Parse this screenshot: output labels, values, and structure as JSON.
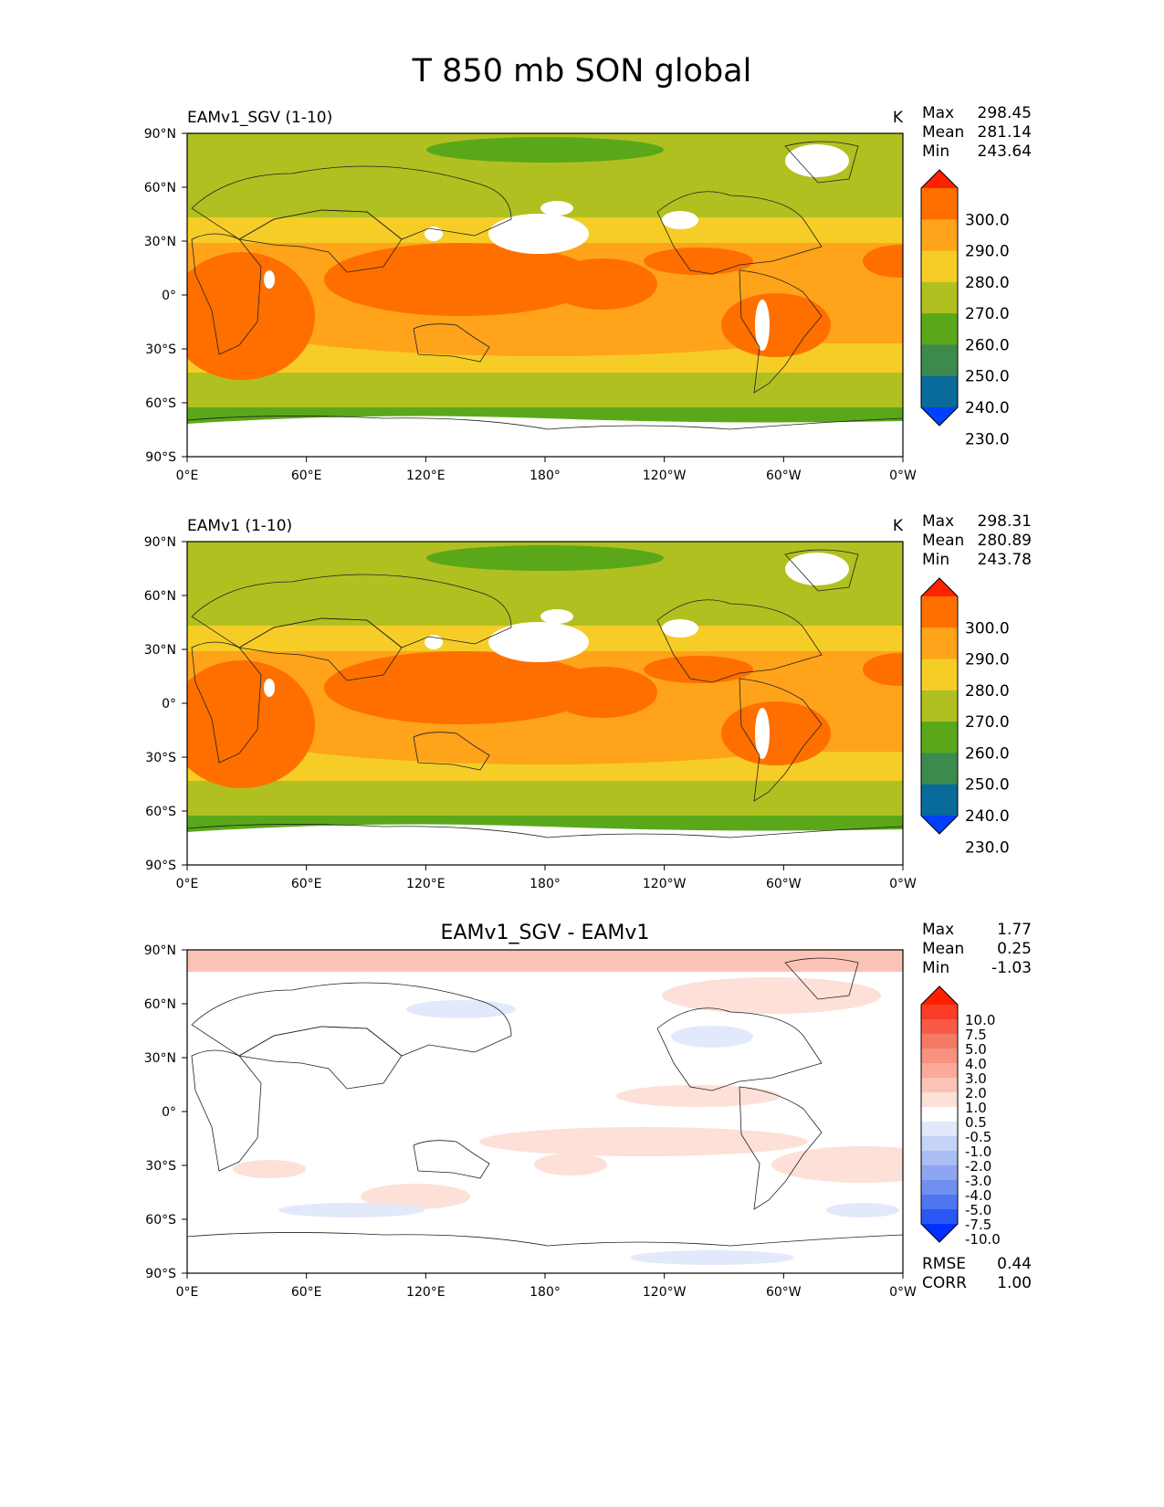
{
  "figure": {
    "title": "T 850 mb SON global"
  },
  "chart_data": [
    {
      "type": "heatmap",
      "title": "EAMv1_SGV (1-10)",
      "units": "K",
      "stats": {
        "max_label": "Max",
        "max": "298.45",
        "mean_label": "Mean",
        "mean": "281.14",
        "min_label": "Min",
        "min": "243.64"
      },
      "xticks": [
        "0°E",
        "60°E",
        "120°E",
        "180°",
        "120°W",
        "60°W",
        "0°W"
      ],
      "yticks": [
        "90°N",
        "60°N",
        "30°N",
        "0°",
        "30°S",
        "60°S",
        "90°S"
      ],
      "xlim": [
        0,
        360
      ],
      "ylim": [
        -90,
        90
      ],
      "colorbar": {
        "labels": [
          "300.0",
          "290.0",
          "280.0",
          "270.0",
          "260.0",
          "250.0",
          "240.0",
          "230.0"
        ],
        "colors": [
          "#ff2200",
          "#ff6f00",
          "#ffa31a",
          "#f5cd26",
          "#b0c020",
          "#5aa81a",
          "#3d8a4e",
          "#086b9a",
          "#0040ff"
        ]
      },
      "description": "field of 850 mb temperature, warmest (290-300 K) over tropical Africa, Indo-Pacific warm pool and South America; coldest over polar regions"
    },
    {
      "type": "heatmap",
      "title": "EAMv1 (1-10)",
      "units": "K",
      "stats": {
        "max_label": "Max",
        "max": "298.31",
        "mean_label": "Mean",
        "mean": "280.89",
        "min_label": "Min",
        "min": "243.78"
      },
      "xticks": [
        "0°E",
        "60°E",
        "120°E",
        "180°",
        "120°W",
        "60°W",
        "0°W"
      ],
      "yticks": [
        "90°N",
        "60°N",
        "30°N",
        "0°",
        "30°S",
        "60°S",
        "90°S"
      ],
      "xlim": [
        0,
        360
      ],
      "ylim": [
        -90,
        90
      ],
      "colorbar": {
        "labels": [
          "300.0",
          "290.0",
          "280.0",
          "270.0",
          "260.0",
          "250.0",
          "240.0",
          "230.0"
        ],
        "colors": [
          "#ff2200",
          "#ff6f00",
          "#ffa31a",
          "#f5cd26",
          "#b0c020",
          "#5aa81a",
          "#3d8a4e",
          "#086b9a",
          "#0040ff"
        ]
      }
    },
    {
      "type": "heatmap",
      "title": "EAMv1_SGV - EAMv1",
      "units": "",
      "stats": {
        "max_label": "Max",
        "max": "1.77",
        "mean_label": "Mean",
        "mean": "0.25",
        "min_label": "Min",
        "min": "-1.03"
      },
      "metrics": {
        "rmse_label": "RMSE",
        "rmse": "0.44",
        "corr_label": "CORR",
        "corr": "1.00"
      },
      "xticks": [
        "0°E",
        "60°E",
        "120°E",
        "180°",
        "120°W",
        "60°W",
        "0°W"
      ],
      "yticks": [
        "90°N",
        "60°N",
        "30°N",
        "0°",
        "30°S",
        "60°S",
        "90°S"
      ],
      "xlim": [
        0,
        360
      ],
      "ylim": [
        -90,
        90
      ],
      "colorbar": {
        "labels": [
          "10.0",
          "7.5",
          "5.0",
          "4.0",
          "3.0",
          "2.0",
          "1.0",
          "0.5",
          "-0.5",
          "-1.0",
          "-2.0",
          "-3.0",
          "-4.0",
          "-5.0",
          "-7.5",
          "-10.0"
        ],
        "colors": [
          "#ff2000",
          "#fa3c28",
          "#f75a46",
          "#f57a64",
          "#f7927f",
          "#f9aa9a",
          "#fbc3b6",
          "#fde0d8",
          "#ffffff",
          "#e2e9fb",
          "#c6d3f8",
          "#aabdf5",
          "#8ea6f2",
          "#7090f0",
          "#4f76f0",
          "#2a58f4",
          "#0030ff"
        ]
      }
    }
  ]
}
